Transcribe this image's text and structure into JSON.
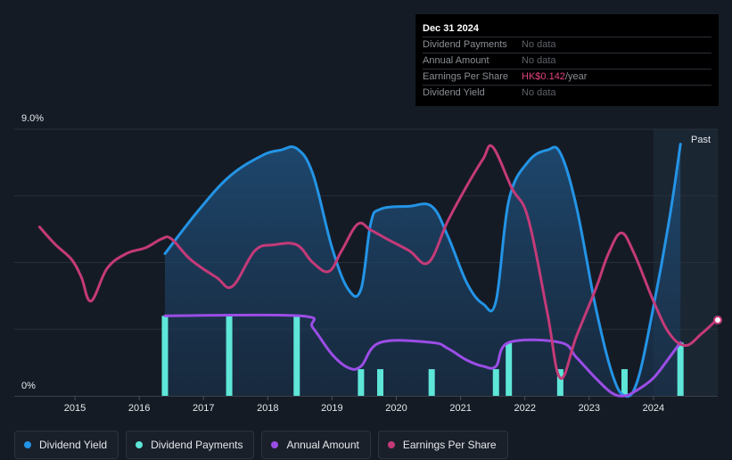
{
  "tooltip": {
    "date": "Dec 31 2024",
    "rows": [
      {
        "label": "Dividend Payments",
        "value": "No data"
      },
      {
        "label": "Annual Amount",
        "value": "No data"
      },
      {
        "label": "Earnings Per Share",
        "value_main": "HK$0.142",
        "value_suffix": "/year"
      },
      {
        "label": "Dividend Yield",
        "value": "No data"
      }
    ]
  },
  "legend": [
    {
      "label": "Dividend Yield",
      "color": "#2394e6"
    },
    {
      "label": "Dividend Payments",
      "color": "#5ee6d8"
    },
    {
      "label": "Annual Amount",
      "color": "#9b4de6"
    },
    {
      "label": "Earnings Per Share",
      "color": "#c43a78"
    }
  ],
  "chart_data": {
    "type": "line",
    "y_top_label": "9.0%",
    "y_bottom_label": "0%",
    "ylim": [
      0,
      9.0
    ],
    "xlim": [
      2014.5,
      2025.0
    ],
    "x_ticks": [
      "2015",
      "2016",
      "2017",
      "2018",
      "2019",
      "2020",
      "2021",
      "2022",
      "2023",
      "2024"
    ],
    "x_tick_values": [
      2015,
      2016,
      2017,
      2018,
      2019,
      2020,
      2021,
      2022,
      2023,
      2024
    ],
    "past_label": "Past",
    "past_start": 2024.0,
    "series": [
      {
        "name": "Dividend Yield",
        "color": "#2394e6",
        "fill": true,
        "points": [
          [
            2016.4,
            4.8
          ],
          [
            2016.9,
            6.2
          ],
          [
            2017.4,
            7.4
          ],
          [
            2017.9,
            8.1
          ],
          [
            2018.2,
            8.3
          ],
          [
            2018.45,
            8.35
          ],
          [
            2018.7,
            7.5
          ],
          [
            2019.0,
            5.0
          ],
          [
            2019.25,
            3.6
          ],
          [
            2019.45,
            3.6
          ],
          [
            2019.6,
            5.8
          ],
          [
            2019.75,
            6.3
          ],
          [
            2020.2,
            6.4
          ],
          [
            2020.55,
            6.4
          ],
          [
            2020.8,
            5.4
          ],
          [
            2021.1,
            3.8
          ],
          [
            2021.35,
            3.1
          ],
          [
            2021.55,
            3.2
          ],
          [
            2021.75,
            6.6
          ],
          [
            2022.05,
            7.9
          ],
          [
            2022.35,
            8.3
          ],
          [
            2022.55,
            8.2
          ],
          [
            2022.8,
            6.4
          ],
          [
            2023.1,
            3.0
          ],
          [
            2023.35,
            0.8
          ],
          [
            2023.55,
            0.0
          ],
          [
            2023.75,
            0.5
          ],
          [
            2024.0,
            3.0
          ],
          [
            2024.25,
            6.0
          ],
          [
            2024.42,
            8.5
          ]
        ]
      },
      {
        "name": "Annual Amount",
        "color": "#9b4de6",
        "points": [
          [
            2016.4,
            2.7
          ],
          [
            2018.5,
            2.7
          ],
          [
            2018.7,
            2.3
          ],
          [
            2019.0,
            1.4
          ],
          [
            2019.25,
            0.95
          ],
          [
            2019.45,
            1.0
          ],
          [
            2019.75,
            1.8
          ],
          [
            2020.55,
            1.8
          ],
          [
            2020.8,
            1.6
          ],
          [
            2021.1,
            1.2
          ],
          [
            2021.35,
            1.0
          ],
          [
            2021.55,
            1.0
          ],
          [
            2021.75,
            1.8
          ],
          [
            2022.55,
            1.8
          ],
          [
            2022.8,
            1.3
          ],
          [
            2023.1,
            0.6
          ],
          [
            2023.35,
            0.1
          ],
          [
            2023.55,
            0.0
          ],
          [
            2023.75,
            0.2
          ],
          [
            2024.0,
            0.6
          ],
          [
            2024.25,
            1.3
          ],
          [
            2024.42,
            1.8
          ]
        ]
      },
      {
        "name": "Earnings Per Share",
        "color": "#c43a78",
        "points": [
          [
            2014.45,
            5.7
          ],
          [
            2014.7,
            5.1
          ],
          [
            2014.95,
            4.6
          ],
          [
            2015.1,
            4.0
          ],
          [
            2015.25,
            3.2
          ],
          [
            2015.5,
            4.3
          ],
          [
            2015.8,
            4.8
          ],
          [
            2016.1,
            5.0
          ],
          [
            2016.35,
            5.3
          ],
          [
            2016.5,
            5.3
          ],
          [
            2016.8,
            4.6
          ],
          [
            2017.2,
            4.0
          ],
          [
            2017.45,
            3.7
          ],
          [
            2017.8,
            4.9
          ],
          [
            2018.1,
            5.1
          ],
          [
            2018.45,
            5.1
          ],
          [
            2018.7,
            4.5
          ],
          [
            2018.95,
            4.2
          ],
          [
            2019.15,
            4.9
          ],
          [
            2019.4,
            5.8
          ],
          [
            2019.6,
            5.6
          ],
          [
            2019.85,
            5.3
          ],
          [
            2020.2,
            4.9
          ],
          [
            2020.5,
            4.5
          ],
          [
            2020.8,
            5.9
          ],
          [
            2021.1,
            7.1
          ],
          [
            2021.35,
            8.0
          ],
          [
            2021.5,
            8.4
          ],
          [
            2021.8,
            7.0
          ],
          [
            2022.05,
            6.0
          ],
          [
            2022.35,
            2.8
          ],
          [
            2022.55,
            0.6
          ],
          [
            2022.8,
            2.0
          ],
          [
            2023.1,
            3.6
          ],
          [
            2023.3,
            4.8
          ],
          [
            2023.5,
            5.5
          ],
          [
            2023.7,
            4.8
          ],
          [
            2024.0,
            3.2
          ],
          [
            2024.25,
            2.1
          ],
          [
            2024.5,
            1.7
          ],
          [
            2024.75,
            2.1
          ],
          [
            2025.0,
            2.6
          ]
        ]
      }
    ],
    "payments": {
      "name": "Dividend Payments",
      "color": "#5ee6d8",
      "bars": [
        [
          2016.4,
          2.7
        ],
        [
          2017.4,
          2.7
        ],
        [
          2018.45,
          2.7
        ],
        [
          2019.45,
          0.9
        ],
        [
          2019.75,
          0.9
        ],
        [
          2020.55,
          0.9
        ],
        [
          2021.55,
          0.9
        ],
        [
          2021.75,
          1.8
        ],
        [
          2022.55,
          0.9
        ],
        [
          2023.55,
          0.9
        ],
        [
          2024.42,
          1.8
        ]
      ]
    }
  }
}
